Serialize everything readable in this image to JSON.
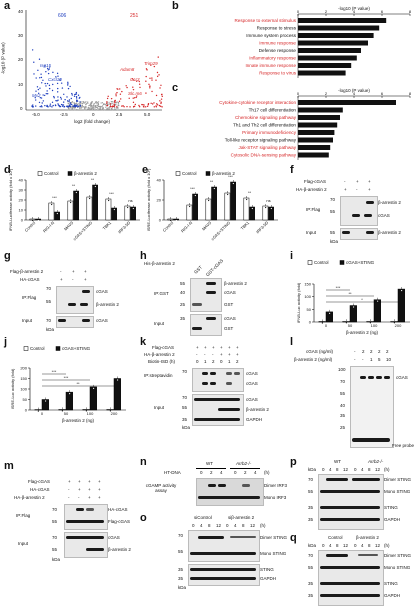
{
  "panels": {
    "a": "a",
    "b": "b",
    "c": "c",
    "d": "d",
    "e": "e",
    "f": "f",
    "g": "g",
    "h": "h",
    "i": "i",
    "j": "j",
    "k": "k",
    "l": "l",
    "m": "m",
    "n": "n",
    "o": "o",
    "p": "p",
    "q": "q"
  },
  "volcano": {
    "down_count": "606",
    "up_count": "251",
    "xlabel": "log2 (fold change)",
    "ylabel": "-log10 (P value)",
    "xticks": [
      "-5.0",
      "-2.5",
      "0",
      "2.5",
      "5.0"
    ],
    "yticks": [
      "0",
      "10",
      "20",
      "30",
      "40"
    ],
    "down_genes": [
      "Isg15",
      "Cxcl10",
      "Mx2"
    ],
    "up_genes": [
      "Trim29",
      "Adam8",
      "Ccr3",
      "Slc.m6"
    ],
    "colors": {
      "up": "#d62728",
      "down": "#1f3fbf",
      "ns": "#999999"
    }
  },
  "chart_data": [
    {
      "type": "bar",
      "panel": "b",
      "title": "-log10 (P value)",
      "xticks": [
        "0",
        "2",
        "4",
        "6",
        "8"
      ],
      "xlim": [
        0,
        8
      ],
      "categories": [
        "Response to external stimulus",
        "Response to stress",
        "Immune system process",
        "Immune response",
        "Defense response",
        "Inflammatory response",
        "Innate immune response",
        "Response to virus"
      ],
      "values": [
        6.3,
        5.8,
        5.4,
        5.0,
        4.5,
        4.2,
        3.8,
        3.4
      ],
      "highlighted": [
        true,
        false,
        false,
        true,
        false,
        true,
        true,
        true
      ]
    },
    {
      "type": "bar",
      "panel": "c",
      "title": "-log10 (P value)",
      "xticks": [
        "0",
        "2",
        "4",
        "6",
        "8"
      ],
      "xlim": [
        0,
        8
      ],
      "categories": [
        "Cytokine-cytokine receptor interaction",
        "Th17 cell differentiation",
        "Chemokine signaling pathway",
        "Th1 and Th2 cell differentiation",
        "Primary immunodeficiency",
        "Toll-like receptor signaling pathway",
        "Jak-STAT signaling pathway",
        "Cytosolic DNA-sensing pathway"
      ],
      "values": [
        7.0,
        3.2,
        3.0,
        2.8,
        2.6,
        2.5,
        2.3,
        2.2
      ],
      "highlighted": [
        true,
        false,
        true,
        false,
        true,
        false,
        true,
        true
      ]
    },
    {
      "type": "bar",
      "panel": "d",
      "ylabel": "IFNB-Luciferase activity (fold x 10²)",
      "ylim": [
        0,
        40
      ],
      "yticks": [
        "0",
        "10",
        "20",
        "30",
        "40"
      ],
      "legend": [
        "Control",
        "β-arrestin 2"
      ],
      "categories": [
        "Control",
        "RIG-I-N",
        "MAVS",
        "cGAS+STING",
        "TBK1",
        "IRF3-5D"
      ],
      "series": [
        {
          "name": "Control",
          "values": [
            1,
            17,
            19,
            23,
            21,
            14
          ]
        },
        {
          "name": "β-arrestin 2",
          "values": [
            1,
            8,
            29,
            35,
            12,
            13
          ]
        }
      ],
      "significance": [
        "",
        "***",
        "**",
        "**",
        "***",
        "ns"
      ]
    },
    {
      "type": "bar",
      "panel": "e",
      "ylabel": "ISRE-Luciferase activity (fold x 10²)",
      "ylim": [
        0,
        40
      ],
      "yticks": [
        "0",
        "20",
        "40"
      ],
      "legend": [
        "Control",
        "β-arrestin 2"
      ],
      "categories": [
        "Control",
        "RIG-I-N",
        "MAVS",
        "cGAS+STING",
        "TBK1",
        "IRF3-5D"
      ],
      "series": [
        {
          "name": "Control",
          "values": [
            1,
            15,
            21,
            27,
            22,
            14
          ]
        },
        {
          "name": "β-arrestin 2",
          "values": [
            1,
            26,
            33,
            38,
            13,
            13
          ]
        }
      ],
      "significance": [
        "",
        "***",
        "**",
        "***",
        "**",
        "ns"
      ]
    },
    {
      "type": "bar",
      "panel": "i",
      "ylabel": "IFNB-Luc activity (fold)",
      "xlabel": "β-arrestin 2 (ng)",
      "ylim": [
        0,
        150
      ],
      "yticks": [
        "0",
        "50",
        "100",
        "150"
      ],
      "legend": [
        "Control",
        "cGAS+STING"
      ],
      "categories": [
        "0",
        "50",
        "100",
        "200"
      ],
      "series": [
        {
          "name": "Control",
          "values": [
            2,
            3,
            3,
            3
          ]
        },
        {
          "name": "cGAS+STING",
          "values": [
            40,
            65,
            88,
            130
          ]
        }
      ],
      "significance": [
        "***",
        "**",
        "*"
      ]
    },
    {
      "type": "bar",
      "panel": "j",
      "ylabel": "ISRE-Luc activity (fold)",
      "xlabel": "β-arrestin 2 (ng)",
      "ylim": [
        0,
        200
      ],
      "yticks": [
        "0",
        "50",
        "100",
        "150",
        "200"
      ],
      "legend": [
        "Control",
        "cGAS+STING"
      ],
      "categories": [
        "0",
        "50",
        "100",
        "200"
      ],
      "series": [
        {
          "name": "Control",
          "values": [
            2,
            3,
            3,
            3
          ]
        },
        {
          "name": "cGAS+STING",
          "values": [
            50,
            85,
            110,
            150
          ]
        }
      ],
      "significance": [
        "***",
        "***",
        "**"
      ]
    }
  ],
  "blots": {
    "f": {
      "rows": [
        "Flag-cGAS",
        "HA-β-arrestin 2"
      ],
      "signs": [
        [
          "-",
          "+",
          "+"
        ],
        [
          "+",
          "-",
          "+"
        ]
      ],
      "ip": "IP:Flag",
      "input": "Input",
      "bands": [
        "β-arrestin 2",
        "cGAS",
        "β-arrestin 2"
      ],
      "kda": [
        "70",
        "55",
        "55"
      ]
    },
    "g": {
      "rows": [
        "Flag-β-arrestin 2",
        "HA-cGAS"
      ],
      "signs": [
        [
          "-",
          "+",
          "+"
        ],
        [
          "+",
          "-",
          "+"
        ]
      ],
      "ip": "IP:Flag",
      "input": "Input",
      "bands": [
        "cGAS",
        "β-arrestin 2",
        "cGAS"
      ],
      "kda": [
        "70",
        "55",
        "70"
      ]
    },
    "h": {
      "rows": [
        "His-β-arrestin 2"
      ],
      "lanes": [
        "GST",
        "GST-cGAS"
      ],
      "ip": "IP:GST",
      "input": "Input",
      "bands": [
        "β-arrestin 2",
        "GST",
        "cGAS",
        "GST",
        "cGAS"
      ],
      "kda": [
        "55",
        "40",
        "35",
        "25"
      ]
    },
    "k": {
      "rows": [
        "Flag-cGAS",
        "HA-β-arrestin 2",
        "Biotin-ISD (h)"
      ],
      "signs": [
        [
          "+",
          "+",
          "+",
          "+",
          "+",
          "+"
        ],
        [
          "-",
          "-",
          "-",
          "+",
          "+",
          "+"
        ],
        [
          "0",
          "1",
          "2",
          "0",
          "1",
          "2"
        ]
      ],
      "ip": "IP:streptavidin",
      "input": "Input",
      "bands": [
        "cGAS",
        "cGAS",
        "cGAS",
        "β-arrestin 2",
        "GAPDH"
      ],
      "kda": [
        "70",
        "70",
        "55",
        "35"
      ]
    },
    "l": {
      "rows": [
        "cGAS (ng/ml)",
        "β-arrestin 2 (ng/ml)"
      ],
      "signs": [
        [
          "-",
          "2",
          "2",
          "2",
          "2"
        ],
        [
          "-",
          "-",
          "1",
          "5",
          "10"
        ]
      ],
      "bands": [
        "cGAS",
        "Free probe"
      ],
      "kda": [
        "100",
        "70",
        "55",
        "40",
        "35",
        "25"
      ]
    },
    "m": {
      "rows": [
        "Flag-cGAS",
        "HA-cGAS",
        "HA-β-arrestin 2"
      ],
      "signs": [
        [
          "+",
          "+",
          "+",
          "+"
        ],
        [
          "-",
          "+",
          "+",
          "+"
        ],
        [
          "-",
          "-",
          "+",
          "+"
        ]
      ],
      "ip": "IP:Flag",
      "input": "Input",
      "bands": [
        "HA-cGAS",
        "Flag-cGAS",
        "cGAS",
        "β-arrestin 2"
      ],
      "kda": [
        "70",
        "55",
        "70",
        "55"
      ]
    },
    "n": {
      "groups": [
        "WT",
        "Arrb2-/-"
      ],
      "treatment": "HT-DNA",
      "times": [
        "0",
        "2",
        "4",
        "0",
        "2",
        "4"
      ],
      "unit": "(h)",
      "left": "cGAMP activity assay",
      "bands": [
        "Dimer IRF3",
        "Mono IRF3"
      ]
    },
    "o": {
      "groups": [
        "siControl",
        "siβ-arrestin 2"
      ],
      "times": [
        "0",
        "4",
        "8",
        "12",
        "0",
        "4",
        "8",
        "12"
      ],
      "unit": "(h)",
      "bands": [
        "Dimer STING",
        "Mono STING",
        "STING",
        "GAPDH"
      ],
      "kda": [
        "70",
        "55",
        "35",
        "35"
      ]
    },
    "p": {
      "groups": [
        "WT",
        "Arrb2-/-"
      ],
      "times": [
        "0",
        "4",
        "8",
        "12",
        "0",
        "4",
        "8",
        "12"
      ],
      "unit": "(h)",
      "bands": [
        "Dimer STING",
        "Mono STING",
        "STING",
        "GAPDH"
      ],
      "kda": [
        "70",
        "55",
        "35",
        "35"
      ]
    },
    "q": {
      "groups": [
        "Control",
        "β-arrestin 2"
      ],
      "times": [
        "0",
        "4",
        "8",
        "12",
        "0",
        "4",
        "8",
        "12"
      ],
      "unit": "(h)",
      "bands": [
        "Dimer STING",
        "Mono STING",
        "STING",
        "GAPDH"
      ],
      "kda": [
        "70",
        "55",
        "35",
        "35"
      ]
    }
  },
  "kda_label": "kDa"
}
